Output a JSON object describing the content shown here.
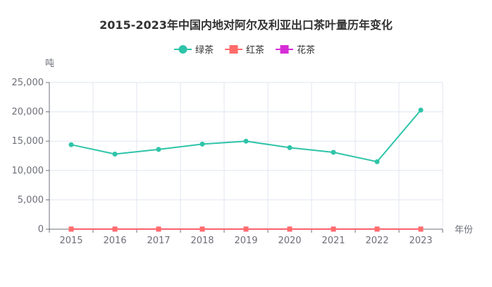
{
  "chart_data": {
    "type": "line",
    "title": "2015-2023年中国内地对阿尔及利亚出口茶叶量历年变化",
    "xlabel": "年份",
    "ylabel": "吨",
    "categories": [
      "2015",
      "2016",
      "2017",
      "2018",
      "2019",
      "2020",
      "2021",
      "2022",
      "2023"
    ],
    "ylim": [
      0,
      25000
    ],
    "yticks": [
      0,
      5000,
      10000,
      15000,
      20000,
      25000
    ],
    "ytick_labels": [
      "0",
      "5,000",
      "10,000",
      "15,000",
      "20,000",
      "25,000"
    ],
    "grid": true,
    "legend_position": "top-center",
    "series": [
      {
        "name": "绿茶",
        "color": "#2ec4a9",
        "marker": "circle",
        "values": [
          14400,
          12800,
          13600,
          14500,
          15000,
          13900,
          13100,
          11500,
          20300
        ]
      },
      {
        "name": "红茶",
        "color": "#ff6b6b",
        "marker": "square",
        "values": [
          20,
          20,
          20,
          20,
          20,
          20,
          20,
          20,
          20
        ]
      },
      {
        "name": "花茶",
        "color": "#d62ed6",
        "marker": "square",
        "values": [
          10,
          10,
          10,
          10,
          10,
          10,
          10,
          10,
          10
        ]
      }
    ]
  }
}
